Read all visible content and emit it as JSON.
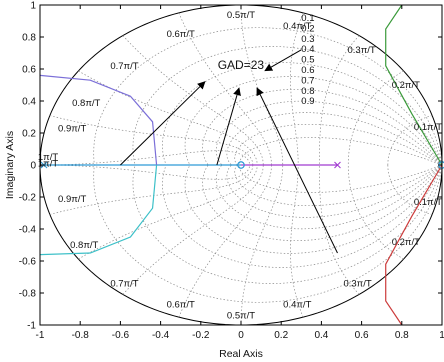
{
  "chart_data": {
    "type": "line",
    "xlabel": "Real Axis",
    "ylabel": "Imaginary Axis",
    "xlim": [
      -1,
      1
    ],
    "ylim": [
      -1,
      1
    ],
    "xticks": [
      "-1",
      "-0.8",
      "-0.6",
      "-0.4",
      "-0.2",
      "0",
      "0.2",
      "0.4",
      "0.6",
      "0.8",
      "1"
    ],
    "yticks": [
      "-1",
      "-0.8",
      "-0.6",
      "-0.4",
      "-0.2",
      "0",
      "0.2",
      "0.4",
      "0.6",
      "0.8",
      "1"
    ],
    "grid": true,
    "unit_circle": true,
    "zeta_values": [
      0.1,
      0.2,
      0.3,
      0.4,
      0.5,
      0.6,
      0.7,
      0.8,
      0.9
    ],
    "zeta_labels": [
      "0.1",
      "0.2",
      "0.3",
      "0.4",
      "0.5",
      "0.6",
      "0.7",
      "0.8",
      "0.9"
    ],
    "wn_values": [
      1,
      2,
      3,
      4,
      5,
      6,
      7,
      8,
      9,
      10
    ],
    "wn_labels_upper": [
      "1π/T",
      "0.9π/T",
      "0.8π/T",
      "0.7π/T",
      "0.6π/T",
      "0.5π/T",
      "0.4π/T",
      "0.3π/T",
      "0.2π/T",
      "0.1π/T"
    ],
    "wn_labels_lower": [
      "1π/T",
      "0.9π/T",
      "0.8π/T",
      "0.7π/T",
      "0.6π/T",
      "0.5π/T",
      "0.4π/T",
      "0.3π/T",
      "0.2π/T",
      "0.1π/T"
    ],
    "annotation": {
      "text": "GAD=23",
      "arrow_tails": [
        [
          -0.6,
          0.0
        ],
        [
          -0.12,
          0.0
        ],
        [
          0.48,
          -0.55
        ],
        [
          0.3,
          0.72
        ]
      ]
    },
    "series": [
      {
        "color": "#2f9bd6",
        "points": [
          [
            -1.0,
            0.0
          ],
          [
            0.0,
            0.0
          ]
        ]
      },
      {
        "color": "#a13bd1",
        "points": [
          [
            0.0,
            0.0
          ],
          [
            0.48,
            0.0
          ]
        ]
      },
      {
        "color": "#7b6fd8",
        "points": [
          [
            -1.0,
            0.56
          ],
          [
            -0.75,
            0.53
          ],
          [
            -0.55,
            0.43
          ],
          [
            -0.44,
            0.27
          ],
          [
            -0.42,
            0.0
          ]
        ]
      },
      {
        "color": "#3cc0c8",
        "points": [
          [
            -0.42,
            0.0
          ],
          [
            -0.44,
            -0.27
          ],
          [
            -0.55,
            -0.45
          ],
          [
            -0.75,
            -0.55
          ],
          [
            -1.0,
            -0.56
          ]
        ]
      },
      {
        "color": "#3a9a3a",
        "points": [
          [
            0.8,
            1.0
          ],
          [
            0.72,
            0.85
          ],
          [
            0.72,
            0.62
          ],
          [
            0.85,
            0.32
          ],
          [
            1.0,
            0.0
          ]
        ]
      },
      {
        "color": "#cc3b3b",
        "points": [
          [
            1.0,
            0.0
          ],
          [
            0.85,
            -0.32
          ],
          [
            0.72,
            -0.62
          ],
          [
            0.72,
            -0.85
          ],
          [
            0.8,
            -1.0
          ]
        ]
      }
    ],
    "markers": [
      {
        "shape": "x",
        "color": "#2f9bd6",
        "x": -0.98,
        "y": 0.0
      },
      {
        "shape": "circle",
        "color": "#2f9bd6",
        "x": 0.0,
        "y": 0.0
      },
      {
        "shape": "circle",
        "color": "#2f9bd6",
        "x": 0.0,
        "y": 0.0
      },
      {
        "shape": "x",
        "color": "#a13bd1",
        "x": 0.48,
        "y": 0.0
      },
      {
        "shape": "circle",
        "color": "#2f9bd6",
        "x": 1.0,
        "y": 0.0
      },
      {
        "shape": "circle",
        "color": "#2f9bd6",
        "x": 1.0,
        "y": 0.0
      }
    ]
  }
}
